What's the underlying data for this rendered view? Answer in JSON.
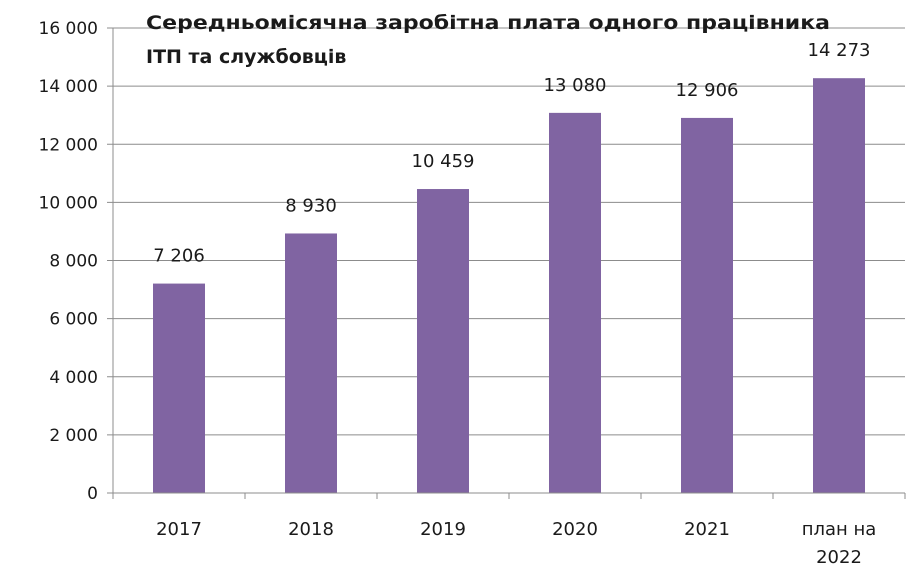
{
  "chart_data": {
    "type": "bar",
    "title_lines": [
      "Середньомісячна заробітна плата одного працівника",
      "ІТП та службовців"
    ],
    "categories": [
      [
        "2017"
      ],
      [
        "2018"
      ],
      [
        "2019"
      ],
      [
        "2020"
      ],
      [
        "2021"
      ],
      [
        "план на",
        "2022"
      ]
    ],
    "values": [
      7206,
      8930,
      10459,
      13080,
      12906,
      14273
    ],
    "value_labels": [
      "7 206",
      "8 930",
      "10 459",
      "13 080",
      "12 906",
      "14 273"
    ],
    "ylim": [
      0,
      16000
    ],
    "y_ticks": [
      0,
      2000,
      4000,
      6000,
      8000,
      10000,
      12000,
      14000,
      16000
    ],
    "y_tick_labels": [
      "0",
      "2 000",
      "4 000",
      "6 000",
      "8 000",
      "10 000",
      "12 000",
      "14 000",
      "16 000"
    ],
    "grid": true,
    "legend": "none",
    "bar_color": "#8064a2"
  }
}
